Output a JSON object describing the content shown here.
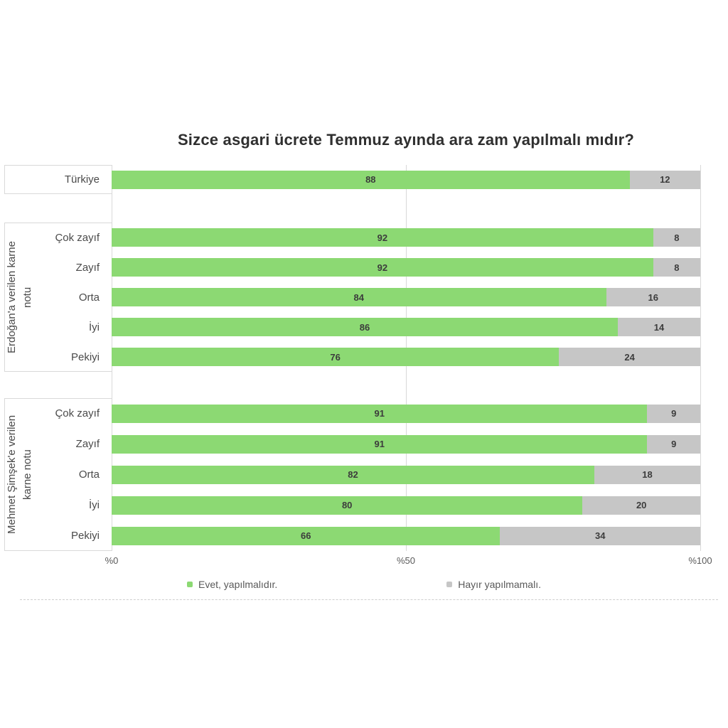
{
  "title": "Sizce asgari ücrete Temmuz ayında ara zam yapılmalı mıdır?",
  "colors": {
    "yes": "#8CD973",
    "no": "#C6C6C6",
    "grid": "#D9D9D9",
    "value_text": "#3C3C3C",
    "label_text": "#4A4A4A"
  },
  "axis": {
    "ticks": [
      "%0",
      "%50",
      "%100"
    ]
  },
  "legend": {
    "items": [
      {
        "label": "Evet, yapılmalıdır.",
        "color_key": "yes"
      },
      {
        "label": "Hayır yapılmamalı.",
        "color_key": "no"
      }
    ]
  },
  "chart_data": {
    "type": "bar",
    "orientation": "horizontal",
    "stacked": true,
    "xlim": [
      0,
      100
    ],
    "x_tick_labels": [
      "%0",
      "%50",
      "%100"
    ],
    "grid": true,
    "legend_position": "bottom",
    "series_names": [
      "Evet, yapılmalıdır.",
      "Hayır yapılmamalı."
    ],
    "title": "Sizce asgari ücrete Temmuz ayında ara zam yapılmalı mıdır?",
    "groups": [
      {
        "label": "",
        "rows": [
          {
            "category": "Türkiye",
            "evet": 88,
            "hayir": 12
          }
        ]
      },
      {
        "label": "Erdoğan'a verilen karne notu",
        "rows": [
          {
            "category": "Çok zayıf",
            "evet": 92,
            "hayir": 8
          },
          {
            "category": "Zayıf",
            "evet": 92,
            "hayir": 8
          },
          {
            "category": "Orta",
            "evet": 84,
            "hayir": 16
          },
          {
            "category": "İyi",
            "evet": 86,
            "hayir": 14
          },
          {
            "category": "Pekiyi",
            "evet": 76,
            "hayir": 24
          }
        ]
      },
      {
        "label": "Mehmet Şimşek'e verilen karne notu",
        "rows": [
          {
            "category": "Çok zayıf",
            "evet": 91,
            "hayir": 9
          },
          {
            "category": "Zayıf",
            "evet": 91,
            "hayir": 9
          },
          {
            "category": "Orta",
            "evet": 82,
            "hayir": 18
          },
          {
            "category": "İyi",
            "evet": 80,
            "hayir": 20
          },
          {
            "category": "Pekiyi",
            "evet": 66,
            "hayir": 34
          }
        ]
      }
    ]
  }
}
